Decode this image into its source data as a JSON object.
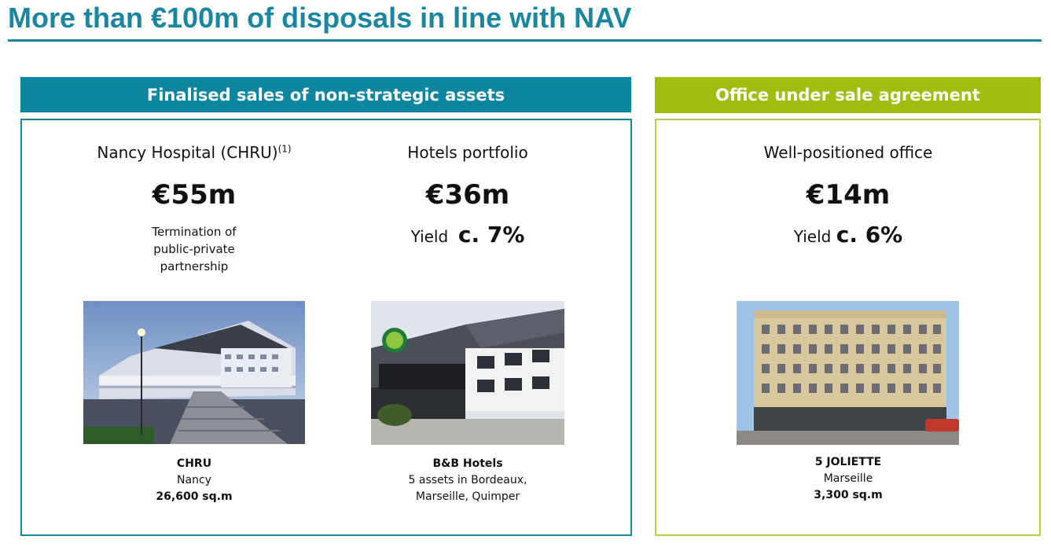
{
  "page": {
    "title": "More than €100m of disposals in line with NAV"
  },
  "left_section": {
    "header": "Finalised sales of non-strategic assets",
    "header_color": "#0e86a0",
    "items": [
      {
        "name": "Nancy Hospital (CHRU)",
        "footnote": "(1)",
        "amount": "€55m",
        "note": "Termination of public-private partnership",
        "photo_icon": "hospital-building-photo",
        "caption_title": "CHRU",
        "caption_location": "Nancy",
        "caption_area": "26,600 sq.m"
      },
      {
        "name": "Hotels portfolio",
        "amount": "€36m",
        "yield_label": "Yield",
        "yield_value": "c. 7%",
        "photo_icon": "hotel-building-photo",
        "caption_title": "B&B Hotels",
        "caption_location_line1": "5 assets in Bordeaux,",
        "caption_location_line2": "Marseille, Quimper"
      }
    ]
  },
  "right_section": {
    "header": "Office under sale agreement",
    "header_color": "#9fbe10",
    "item": {
      "name": "Well-positioned office",
      "amount": "€14m",
      "yield_label": "Yield",
      "yield_value": "c. 6%",
      "photo_icon": "office-building-photo",
      "caption_title": "5 JOLIETTE",
      "caption_location": "Marseille",
      "caption_area": "3,300 sq.m"
    }
  }
}
